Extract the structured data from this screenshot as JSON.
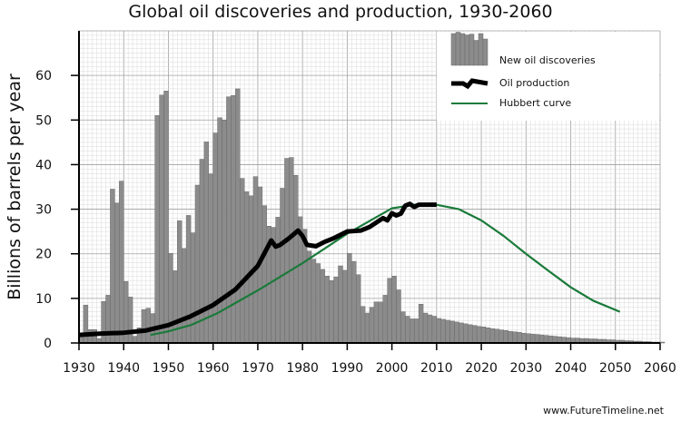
{
  "chart_data": {
    "type": "bar+line",
    "title": "Global oil discoveries and production, 1930-2060",
    "xlabel": "",
    "ylabel": "Billions of barrels per year",
    "xlim": [
      1930,
      2060
    ],
    "ylim": [
      0,
      70
    ],
    "xticks": [
      "1930",
      "1940",
      "1950",
      "1960",
      "1970",
      "1980",
      "1990",
      "2000",
      "2010",
      "2020",
      "2030",
      "2040",
      "2050",
      "2060"
    ],
    "yticks": [
      "0",
      "10",
      "20",
      "30",
      "40",
      "50",
      "60"
    ],
    "grid": true,
    "legend_position": "top-right",
    "colors": {
      "bars": "#8c8c8c",
      "bar_edge": "#6a6a6a",
      "production": "#000000",
      "hubbert": "#1a7a3a",
      "grid_minor": "#d9d9d9",
      "grid_major": "#a0a0a0"
    },
    "series": [
      {
        "name": "New oil discoveries",
        "type": "bar",
        "start_year": 1930,
        "values": [
          1.5,
          8.5,
          3,
          3,
          1,
          9.3,
          10.7,
          34.5,
          31.4,
          36.3,
          13.8,
          10.3,
          1.5,
          3.4,
          7.5,
          7.8,
          6.6,
          51,
          55.6,
          56.5,
          20.1,
          16.2,
          27.4,
          21.2,
          28.6,
          24.7,
          35.4,
          41.2,
          45.1,
          37.9,
          47.1,
          50.5,
          50,
          55.2,
          55.5,
          57,
          36.9,
          33.9,
          33,
          37.3,
          35,
          30.8,
          26.2,
          25.9,
          28.2,
          34.7,
          41.4,
          41.6,
          37.6,
          28.3,
          25.5,
          20.6,
          18.8,
          17.8,
          16.5,
          15,
          14,
          14.8,
          17.3,
          16.3,
          20.1,
          18.3,
          15.3,
          8.2,
          6.7,
          8,
          9.2,
          9.2,
          10.7,
          14.5,
          15,
          11.9,
          7,
          6,
          5.4,
          5.4,
          8.7,
          6.7,
          6.3,
          6,
          5.5,
          5.3,
          5.1,
          4.9,
          4.7,
          4.5,
          4.3,
          4.1,
          3.9,
          3.7,
          3.6,
          3.4,
          3.2,
          3.1,
          2.9,
          2.8,
          2.6,
          2.5,
          2.4,
          2.2,
          2.1,
          2,
          1.9,
          1.8,
          1.7,
          1.6,
          1.5,
          1.4,
          1.3,
          1.2,
          1.1,
          1.1,
          1,
          1,
          0.9,
          0.9,
          0.8,
          0.8,
          0.7,
          0.7,
          0.6,
          0.6,
          0.5,
          0.5,
          0.4,
          0.4,
          0.3,
          0.3,
          0.2,
          0.2,
          0.2
        ]
      },
      {
        "name": "Oil production",
        "type": "line",
        "x": [
          1930,
          1935,
          1940,
          1945,
          1950,
          1955,
          1960,
          1965,
          1970,
          1973,
          1974,
          1975,
          1977,
          1979,
          1980,
          1981,
          1983,
          1985,
          1987,
          1990,
          1993,
          1995,
          1998,
          1999,
          2000,
          2001,
          2002,
          2003,
          2004,
          2005,
          2006,
          2010
        ],
        "y": [
          1.8,
          2.1,
          2.3,
          2.8,
          4,
          6,
          8.5,
          12,
          17.3,
          23,
          21.6,
          22,
          23.5,
          25.2,
          24,
          22,
          21.7,
          22.7,
          23.5,
          25,
          25.2,
          26,
          28,
          27.5,
          29.1,
          28.6,
          29,
          30.8,
          31.2,
          30.5,
          31,
          31
        ]
      },
      {
        "name": "Hubbert curve",
        "type": "line",
        "x": [
          1946,
          1950,
          1955,
          1961,
          1970,
          1980,
          1990,
          2000,
          2005,
          2010,
          2015,
          2020,
          2025,
          2030,
          2035,
          2040,
          2045,
          2051
        ],
        "y": [
          1.8,
          2.6,
          4,
          6.7,
          11.8,
          17.9,
          24.5,
          30.2,
          31,
          31,
          30,
          27.5,
          24,
          20,
          16.2,
          12.5,
          9.5,
          7
        ]
      }
    ]
  },
  "footer": "www.FutureTimeline.net"
}
